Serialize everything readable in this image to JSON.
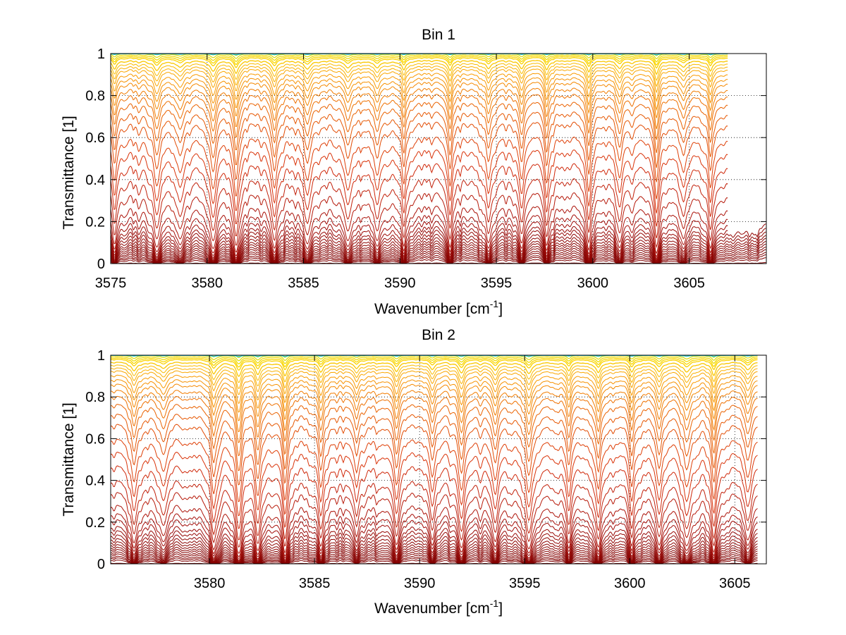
{
  "chart_data": [
    {
      "type": "line",
      "title": "Bin 1",
      "xlabel_text": "Wavenumber [cm",
      "xlabel_sup": "-1",
      "xlabel_close": "]",
      "ylabel": "Transmittance [1]",
      "xlim": [
        3575,
        3609
      ],
      "ylim": [
        0,
        1
      ],
      "xticks": [
        3575,
        3580,
        3585,
        3590,
        3595,
        3600,
        3605
      ],
      "yticks": [
        0,
        0.2,
        0.4,
        0.6,
        0.8,
        1
      ],
      "grid": "dotted",
      "x_range": [
        3575,
        3607
      ],
      "x_range_dark": [
        3575,
        3609
      ],
      "series_count": 42,
      "line_centers": [
        3575.2,
        3577.4,
        3578.6,
        3580.3,
        3581.5,
        3583.5,
        3585.2,
        3587.3,
        3588.8,
        3590.2,
        3592.6,
        3594.6,
        3596.3,
        3597.6,
        3599.8,
        3601.4,
        3603.3,
        3604.7,
        3606.1
      ],
      "base_transmittance": [
        1.0,
        0.995,
        0.99,
        0.98,
        0.97,
        0.96,
        0.95,
        0.94,
        0.92,
        0.9,
        0.88,
        0.86,
        0.83,
        0.8,
        0.77,
        0.73,
        0.69,
        0.64,
        0.58,
        0.52,
        0.45,
        0.38,
        0.31,
        0.24,
        0.18,
        0.13,
        0.1,
        0.08,
        0.065,
        0.055,
        0.045,
        0.037,
        0.03,
        0.025,
        0.02,
        0.016,
        0.012,
        0.009,
        0.006,
        0.004,
        0.002,
        0.0
      ]
    },
    {
      "type": "line",
      "title": "Bin 2",
      "xlabel_text": "Wavenumber [cm",
      "xlabel_sup": "-1",
      "xlabel_close": "]",
      "ylabel": "Transmittance [1]",
      "xlim": [
        3575.3,
        3606.5
      ],
      "ylim": [
        0,
        1
      ],
      "xticks": [
        3580,
        3585,
        3590,
        3595,
        3600,
        3605
      ],
      "yticks": [
        0,
        0.2,
        0.4,
        0.6,
        0.8,
        1
      ],
      "grid": "dotted",
      "x_range": [
        3575.3,
        3606.1
      ],
      "x_range_dark": [
        3575.3,
        3606.1
      ],
      "series_count": 42,
      "line_centers": [
        3576.4,
        3577.8,
        3580.2,
        3581.4,
        3582.3,
        3583.6,
        3585.3,
        3587.0,
        3588.9,
        3590.6,
        3592.0,
        3593.6,
        3595.2,
        3597.1,
        3598.5,
        3600.1,
        3601.4,
        3602.7,
        3604.0,
        3605.6
      ],
      "base_transmittance": [
        1.0,
        0.995,
        0.99,
        0.98,
        0.97,
        0.96,
        0.95,
        0.94,
        0.92,
        0.9,
        0.88,
        0.86,
        0.83,
        0.8,
        0.77,
        0.73,
        0.69,
        0.64,
        0.58,
        0.52,
        0.45,
        0.38,
        0.31,
        0.24,
        0.19,
        0.14,
        0.11,
        0.09,
        0.07,
        0.058,
        0.047,
        0.038,
        0.031,
        0.025,
        0.02,
        0.016,
        0.012,
        0.009,
        0.006,
        0.004,
        0.002,
        0.0
      ]
    }
  ]
}
